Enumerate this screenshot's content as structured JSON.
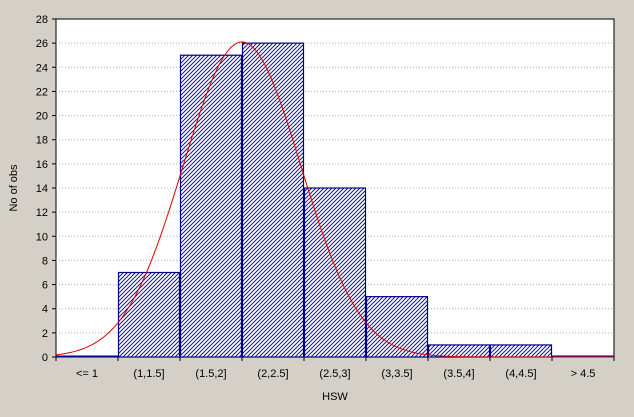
{
  "chart_data": {
    "type": "bar",
    "xlabel": "HSW",
    "ylabel": "No of obs",
    "categories": [
      "<= 1",
      "(1,1.5]",
      "(1.5,2]",
      "(2,2.5]",
      "(2.5,3]",
      "(3,3.5]",
      "(3.5,4]",
      "(4,4.5]",
      "> 4.5"
    ],
    "values": [
      0,
      7,
      25,
      26,
      14,
      5,
      1,
      1,
      0
    ],
    "ylim": [
      0,
      28
    ],
    "yticks": [
      0,
      2,
      4,
      6,
      8,
      10,
      12,
      14,
      16,
      18,
      20,
      22,
      24,
      26,
      28
    ],
    "grid": true,
    "fit_curve": {
      "type": "normal",
      "peak_category_position": 3.0,
      "peak_value": 26.1,
      "color": "#e00000"
    },
    "bar_fill": "hatched",
    "bar_color": "#00008b",
    "background": "#d4d0c8",
    "plot_background": "#ffffff"
  }
}
